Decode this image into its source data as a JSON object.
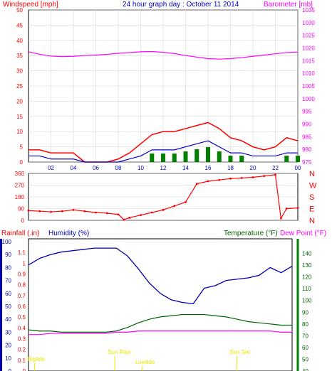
{
  "colors": {
    "wind": "#ff0000",
    "wind_avg": "#0000cc",
    "rain_bars": "#008000",
    "barometer": "#ff00ff",
    "humidity": "#0000aa",
    "temperature": "#006400",
    "dewpoint": "#ff00ff",
    "title": "#0000cc",
    "events": "#e6e600",
    "grid": "#d0d0d0"
  },
  "chart_data": [
    {
      "type": "line",
      "title": "24 hour graph day : October 11 2014",
      "ylabel": "Windspeed [mph]",
      "y2label": "Barometer [mb]",
      "ylim": [
        0,
        50
      ],
      "y2lim": [
        975,
        1035
      ],
      "yticks": [
        "0",
        "5",
        "10",
        "15",
        "20",
        "25",
        "30",
        "35",
        "40",
        "45",
        "50"
      ],
      "y2ticks": [
        "975",
        "980",
        "985",
        "990",
        "995",
        "1000",
        "1005",
        "1010",
        "1015",
        "1020",
        "1025",
        "1030",
        "1035"
      ],
      "xticks": [
        "02",
        "04",
        "06",
        "08",
        "10",
        "12",
        "14",
        "16",
        "18",
        "20",
        "22",
        "00"
      ],
      "x": [
        0,
        1,
        2,
        3,
        4,
        5,
        6,
        7,
        8,
        9,
        10,
        11,
        12,
        13,
        14,
        15,
        16,
        17,
        18,
        19,
        20,
        21,
        22,
        23,
        24
      ],
      "series": [
        {
          "key": "gust",
          "values": [
            4,
            4,
            3,
            3,
            3,
            0,
            0,
            0,
            1,
            3,
            6,
            9,
            10,
            10,
            11,
            12,
            13,
            11,
            8,
            7,
            5,
            4,
            5,
            8,
            7
          ]
        },
        {
          "key": "avg",
          "values": [
            2,
            2,
            1,
            1,
            1,
            0,
            0,
            0,
            0,
            1,
            2,
            4,
            4,
            4,
            5,
            6,
            7,
            5,
            3,
            3,
            2,
            2,
            2,
            3,
            3
          ]
        },
        {
          "key": "barometer",
          "values": [
            1018.5,
            1017.5,
            1016.8,
            1016.6,
            1016.7,
            1017,
            1017.2,
            1017.5,
            1017.9,
            1018.2,
            1018.5,
            1018.6,
            1018.3,
            1017.8,
            1017,
            1016.4,
            1015.8,
            1015.6,
            1015.8,
            1016.2,
            1016.7,
            1017.2,
            1017.7,
            1018.2,
            1018.4
          ]
        }
      ]
    },
    {
      "type": "scatter",
      "ylabel": [
        "N",
        "W",
        "S",
        "E",
        "N"
      ],
      "ylim": [
        0,
        360
      ],
      "yticks": [
        "0",
        "90",
        "180",
        "270",
        "360"
      ],
      "x": [
        0,
        1,
        2,
        3,
        4,
        5,
        6,
        7,
        8,
        8.5,
        9,
        10,
        11,
        12,
        13,
        14,
        15,
        16,
        17,
        18,
        19,
        20,
        21,
        22,
        22.5,
        23,
        24
      ],
      "series": [
        {
          "key": "direction",
          "values": [
            75,
            70,
            65,
            70,
            80,
            70,
            60,
            55,
            45,
            5,
            20,
            40,
            60,
            80,
            110,
            140,
            280,
            300,
            310,
            320,
            325,
            330,
            340,
            350,
            15,
            90,
            95
          ]
        }
      ]
    },
    {
      "type": "line",
      "ylabel": "Rainfall (.in)",
      "y_humidity_label": "Humidity (%)",
      "y2label": "Temperature (°F)",
      "y3label": "Dew Point (°F)",
      "rain_ylim": [
        0,
        1.2
      ],
      "rain_ticks": [
        "0",
        "0.1",
        "0.2",
        "0.3",
        "0.4",
        "0.5",
        "0.6",
        "0.7",
        "0.8",
        "0.9",
        "1",
        "1.1"
      ],
      "humidity_ylim": [
        0,
        100
      ],
      "humidity_ticks": [
        "0",
        "10",
        "20",
        "30",
        "40",
        "50",
        "60",
        "70",
        "80",
        "90",
        "100"
      ],
      "temp_ylim": [
        40,
        150
      ],
      "temp_ticks": [
        "40",
        "50",
        "60",
        "70",
        "80",
        "90",
        "100",
        "110",
        "120",
        "130",
        "140"
      ],
      "x": [
        0,
        1,
        2,
        3,
        4,
        5,
        6,
        7,
        8,
        9,
        10,
        11,
        12,
        13,
        14,
        15,
        16,
        17,
        18,
        19,
        20,
        21,
        22,
        23,
        24
      ],
      "series": [
        {
          "key": "humidity",
          "values": [
            82,
            87,
            90,
            92,
            93,
            94,
            95,
            95,
            95,
            89,
            79,
            68,
            60,
            55,
            53,
            52,
            64,
            66,
            70,
            71,
            72,
            74,
            80,
            76,
            81
          ]
        },
        {
          "key": "temperature",
          "values": [
            75,
            74,
            74,
            73,
            73,
            73,
            73,
            73,
            74,
            77,
            81,
            84,
            86,
            87,
            88,
            88,
            88,
            87,
            86,
            84,
            82,
            81,
            80,
            79,
            79
          ]
        },
        {
          "key": "dewpoint",
          "values": [
            71,
            71,
            72,
            72,
            72,
            72,
            72,
            72,
            73,
            73,
            74,
            74,
            74,
            74,
            74,
            74,
            74,
            74,
            74,
            74,
            74,
            74,
            74,
            73,
            73
          ]
        }
      ],
      "events": [
        {
          "label": "Bigtide",
          "x": 0.3,
          "row": 0
        },
        {
          "label": "Sun Rise",
          "x": 7.6,
          "row": 1
        },
        {
          "label": "Lowtide",
          "x": 10.1,
          "row": 2
        },
        {
          "label": "Sun Set",
          "x": 18.7,
          "row": 1
        }
      ]
    }
  ]
}
